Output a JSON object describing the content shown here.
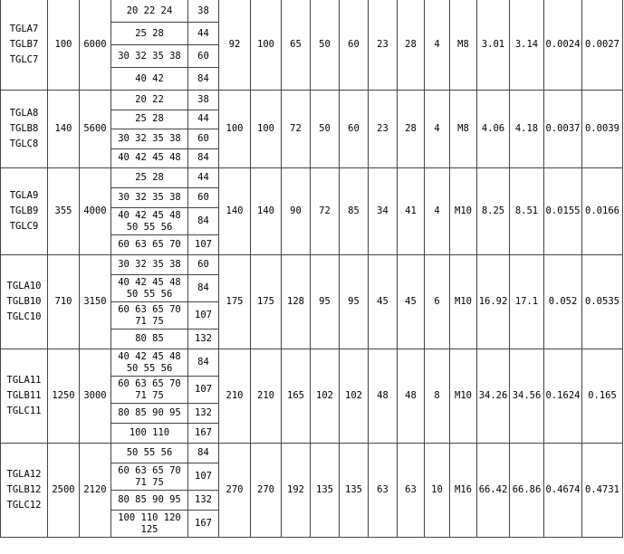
{
  "table": {
    "rows": [
      {
        "model": [
          "TGLA7",
          "TGLB7",
          "TGLC7"
        ],
        "power": "100",
        "speed": "6000",
        "bores": [
          [
            "20 22 24",
            "38"
          ],
          [
            "25 28",
            "44"
          ],
          [
            "30 32 35 38",
            "60"
          ],
          [
            "40 42",
            "84"
          ]
        ],
        "cols": [
          "92",
          "100",
          "65",
          "50",
          "60",
          "23",
          "28",
          "4",
          "M8",
          "3.01",
          "3.14",
          "0.0024",
          "0.0027"
        ]
      },
      {
        "model": [
          "TGLA8",
          "TGLB8",
          "TGLC8"
        ],
        "power": "140",
        "speed": "5600",
        "bores": [
          [
            "20 22",
            "38"
          ],
          [
            "25 28",
            "44"
          ],
          [
            "30 32 35 38",
            "60"
          ],
          [
            "40 42 45 48",
            "84"
          ]
        ],
        "cols": [
          "100",
          "100",
          "72",
          "50",
          "60",
          "23",
          "28",
          "4",
          "M8",
          "4.06",
          "4.18",
          "0.0037",
          "0.0039"
        ]
      },
      {
        "model": [
          "TGLA9",
          "TGLB9",
          "TGLC9"
        ],
        "power": "355",
        "speed": "4000",
        "bores": [
          [
            "25 28",
            "44"
          ],
          [
            "30 32 35 38",
            "60"
          ],
          [
            "40 42 45 48\n50 55 56",
            "84"
          ],
          [
            "60 63 65 70",
            "107"
          ]
        ],
        "cols": [
          "140",
          "140",
          "90",
          "72",
          "85",
          "34",
          "41",
          "4",
          "M10",
          "8.25",
          "8.51",
          "0.0155",
          "0.0166"
        ]
      },
      {
        "model": [
          "TGLA10",
          "TGLB10",
          "TGLC10"
        ],
        "power": "710",
        "speed": "3150",
        "bores": [
          [
            "30 32 35 38",
            "60"
          ],
          [
            "40 42 45 48\n50 55 56",
            "84"
          ],
          [
            "60 63 65 70\n71 75",
            "107"
          ],
          [
            "80 85",
            "132"
          ]
        ],
        "cols": [
          "175",
          "175",
          "128",
          "95",
          "95",
          "45",
          "45",
          "6",
          "M10",
          "16.92",
          "17.1",
          "0.052",
          "0.0535"
        ]
      },
      {
        "model": [
          "TGLA11",
          "TGLB11",
          "TGLC11"
        ],
        "power": "1250",
        "speed": "3000",
        "bores": [
          [
            "40 42 45 48\n50 55 56",
            "84"
          ],
          [
            "60 63 65 70\n71 75",
            "107"
          ],
          [
            "80 85 90 95",
            "132"
          ],
          [
            "100 110",
            "167"
          ]
        ],
        "cols": [
          "210",
          "210",
          "165",
          "102",
          "102",
          "48",
          "48",
          "8",
          "M10",
          "34.26",
          "34.56",
          "0.1624",
          "0.165"
        ]
      },
      {
        "model": [
          "TGLA12",
          "TGLB12",
          "TGLC12"
        ],
        "power": "2500",
        "speed": "2120",
        "bores": [
          [
            "50 55 56",
            "84"
          ],
          [
            "60 63 65 70\n71 75",
            "107"
          ],
          [
            "80 85 90 95",
            "132"
          ],
          [
            "100 110 120\n125",
            "167"
          ]
        ],
        "cols": [
          "270",
          "270",
          "192",
          "135",
          "135",
          "63",
          "63",
          "10",
          "M16",
          "66.42",
          "66.86",
          "0.4674",
          "0.4731"
        ]
      }
    ]
  }
}
